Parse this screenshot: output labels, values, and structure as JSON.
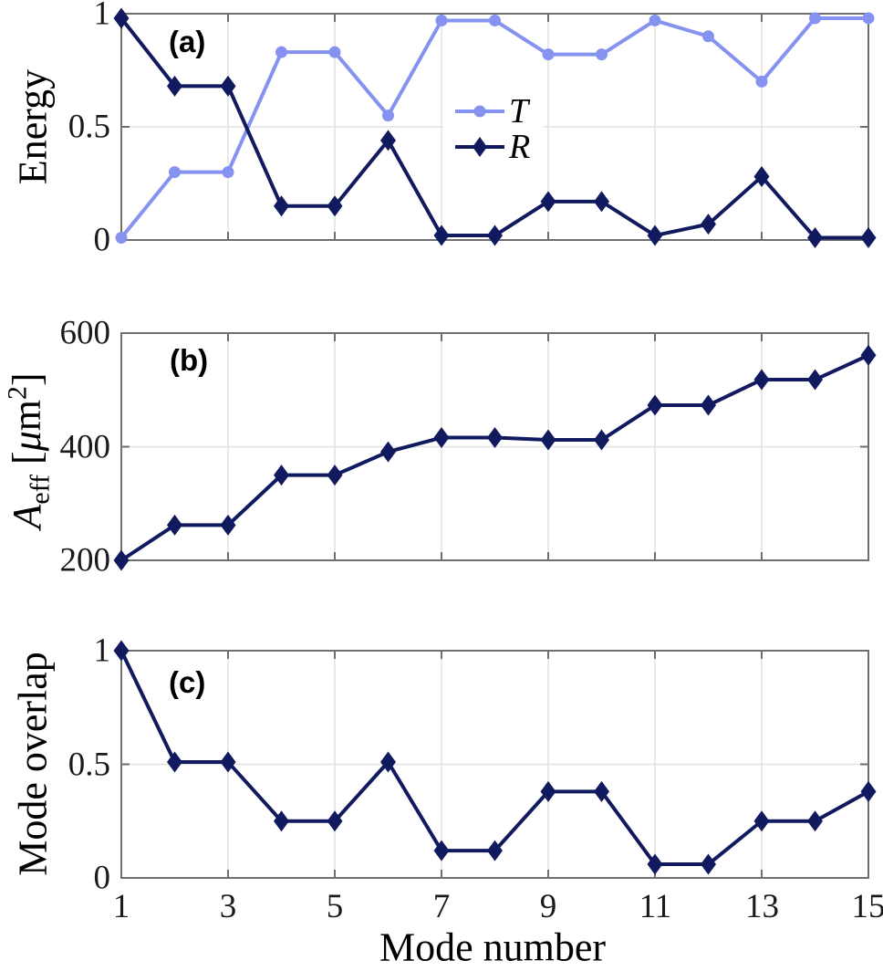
{
  "figure": {
    "xlabel": "Mode number",
    "xticks": [
      1,
      3,
      5,
      7,
      9,
      11,
      13,
      15
    ],
    "xtick_labels": [
      "1",
      "3",
      "5",
      "7",
      "9",
      "11",
      "13",
      "15"
    ],
    "background": "#FFFFFF",
    "colors": {
      "series_T": "#8692F0",
      "series_R": "#111A5E",
      "grid": "#E2E2E2",
      "frame": "#6F6F6F",
      "tick_text": "#1A1A1A"
    }
  },
  "chart_data": [
    {
      "type": "line",
      "panel_label": "(a)",
      "ylabel": "Energy",
      "x": [
        1,
        2,
        3,
        4,
        5,
        6,
        7,
        8,
        9,
        10,
        11,
        12,
        13,
        14,
        15
      ],
      "xlim": [
        1,
        15
      ],
      "ylim": [
        0,
        1
      ],
      "yticks": [
        0,
        0.5,
        1
      ],
      "ytick_labels": [
        "0",
        "0.5",
        "1"
      ],
      "grid": true,
      "legend": {
        "visible": true,
        "position": "inside-upper-middle-left",
        "entries": [
          "T",
          "R"
        ]
      },
      "series": [
        {
          "name": "T",
          "marker": "circle",
          "color": "#8692F0",
          "values": [
            0.01,
            0.3,
            0.3,
            0.83,
            0.83,
            0.55,
            0.97,
            0.97,
            0.82,
            0.82,
            0.97,
            0.9,
            0.7,
            0.98,
            0.98
          ]
        },
        {
          "name": "R",
          "marker": "diamond",
          "color": "#111A5E",
          "values": [
            0.98,
            0.68,
            0.68,
            0.15,
            0.15,
            0.44,
            0.02,
            0.02,
            0.17,
            0.17,
            0.02,
            0.07,
            0.28,
            0.01,
            0.01
          ]
        }
      ]
    },
    {
      "type": "line",
      "panel_label": "(b)",
      "ylabel_parts": {
        "var": "A",
        "sub": "eff",
        "open": " [",
        "mu": "μ",
        "m": "m",
        "sup": "2",
        "close": "]"
      },
      "x": [
        1,
        2,
        3,
        4,
        5,
        6,
        7,
        8,
        9,
        10,
        11,
        12,
        13,
        14,
        15
      ],
      "xlim": [
        1,
        15
      ],
      "ylim": [
        200,
        600
      ],
      "yticks": [
        200,
        400,
        600
      ],
      "ytick_labels": [
        "200",
        "400",
        "600"
      ],
      "grid": true,
      "legend": {
        "visible": false
      },
      "series": [
        {
          "name": "A_eff",
          "marker": "diamond",
          "color": "#111A5E",
          "values": [
            200,
            262,
            262,
            350,
            350,
            391,
            416,
            416,
            412,
            412,
            473,
            473,
            518,
            518,
            561
          ]
        }
      ]
    },
    {
      "type": "line",
      "panel_label": "(c)",
      "ylabel": "Mode overlap",
      "x": [
        1,
        2,
        3,
        4,
        5,
        6,
        7,
        8,
        9,
        10,
        11,
        12,
        13,
        14,
        15
      ],
      "xlim": [
        1,
        15
      ],
      "ylim": [
        0,
        1
      ],
      "yticks": [
        0,
        0.5,
        1
      ],
      "ytick_labels": [
        "0",
        "0.5",
        "1"
      ],
      "grid": true,
      "legend": {
        "visible": false
      },
      "series": [
        {
          "name": "Mode overlap",
          "marker": "diamond",
          "color": "#111A5E",
          "values": [
            1.0,
            0.51,
            0.51,
            0.25,
            0.25,
            0.51,
            0.12,
            0.12,
            0.38,
            0.38,
            0.06,
            0.06,
            0.25,
            0.25,
            0.38
          ]
        }
      ]
    }
  ]
}
